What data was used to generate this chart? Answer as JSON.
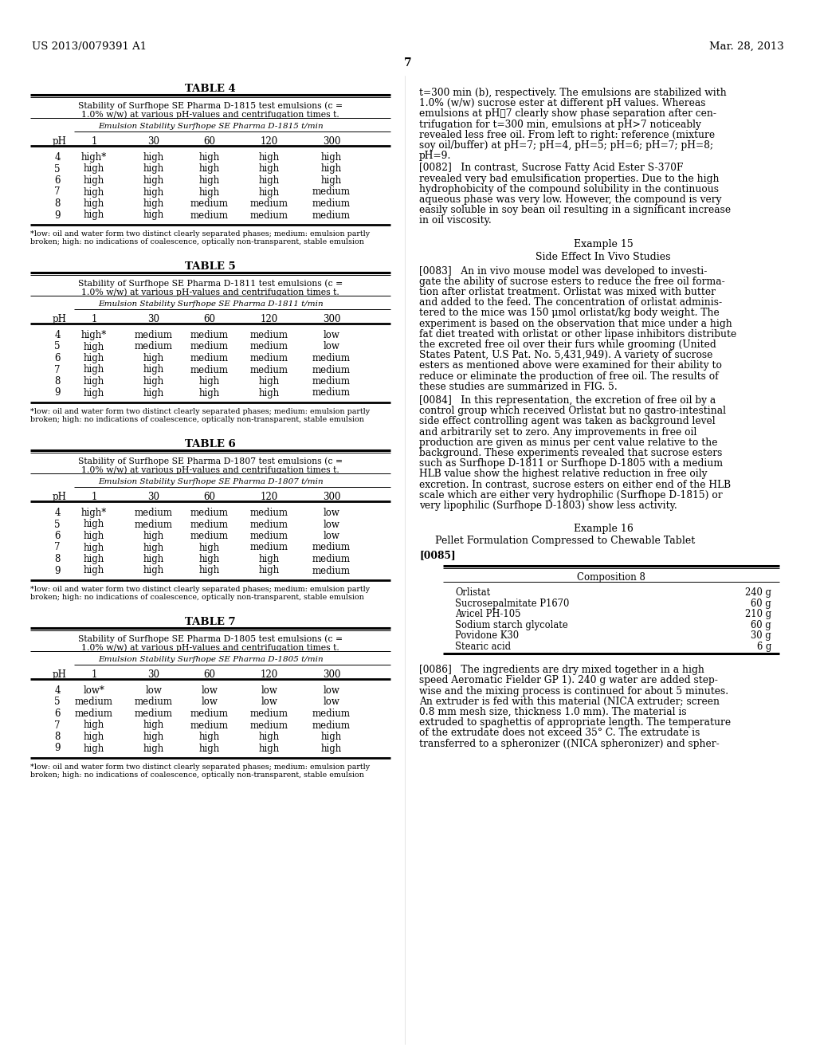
{
  "page_num": "7",
  "patent_num": "US 2013/0079391 A1",
  "patent_date": "Mar. 28, 2013",
  "bg_color": "#ffffff",
  "tables": [
    {
      "title": "TABLE 4",
      "subtitle1": "Stability of Surfhope SE Pharma D-1815 test emulsions (c =",
      "subtitle2": "1.0% w/w) at various pH-values and centrifugation times t.",
      "col_header": "Emulsion Stability Surfhope SE Pharma D-1815 t/min",
      "time_cols": [
        "1",
        "30",
        "60",
        "120",
        "300"
      ],
      "rows": [
        [
          "4",
          "high*",
          "high",
          "high",
          "high",
          "high"
        ],
        [
          "5",
          "high",
          "high",
          "high",
          "high",
          "high"
        ],
        [
          "6",
          "high",
          "high",
          "high",
          "high",
          "high"
        ],
        [
          "7",
          "high",
          "high",
          "high",
          "high",
          "medium"
        ],
        [
          "8",
          "high",
          "high",
          "medium",
          "medium",
          "medium"
        ],
        [
          "9",
          "high",
          "high",
          "medium",
          "medium",
          "medium"
        ]
      ],
      "footnote1": "*low: oil and water form two distinct clearly separated phases; medium: emulsion partly",
      "footnote2": "broken; high: no indications of coalescence, optically non-transparent, stable emulsion"
    },
    {
      "title": "TABLE 5",
      "subtitle1": "Stability of Surfhope SE Pharma D-1811 test emulsions (c =",
      "subtitle2": "1.0% w/w) at various pH-values and centrifugation times t.",
      "col_header": "Emulsion Stability Surfhope SE Pharma D-1811 t/min",
      "time_cols": [
        "1",
        "30",
        "60",
        "120",
        "300"
      ],
      "rows": [
        [
          "4",
          "high*",
          "medium",
          "medium",
          "medium",
          "low"
        ],
        [
          "5",
          "high",
          "medium",
          "medium",
          "medium",
          "low"
        ],
        [
          "6",
          "high",
          "high",
          "medium",
          "medium",
          "medium"
        ],
        [
          "7",
          "high",
          "high",
          "medium",
          "medium",
          "medium"
        ],
        [
          "8",
          "high",
          "high",
          "high",
          "high",
          "medium"
        ],
        [
          "9",
          "high",
          "high",
          "high",
          "high",
          "medium"
        ]
      ],
      "footnote1": "*low: oil and water form two distinct clearly separated phases; medium: emulsion partly",
      "footnote2": "broken; high: no indications of coalescence, optically non-transparent, stable emulsion"
    },
    {
      "title": "TABLE 6",
      "subtitle1": "Stability of Surfhope SE Pharma D-1807 test emulsions (c =",
      "subtitle2": "1.0% w/w) at various pH-values and centrifugation times t.",
      "col_header": "Emulsion Stability Surfhope SE Pharma D-1807 t/min",
      "time_cols": [
        "1",
        "30",
        "60",
        "120",
        "300"
      ],
      "rows": [
        [
          "4",
          "high*",
          "medium",
          "medium",
          "medium",
          "low"
        ],
        [
          "5",
          "high",
          "medium",
          "medium",
          "medium",
          "low"
        ],
        [
          "6",
          "high",
          "high",
          "medium",
          "medium",
          "low"
        ],
        [
          "7",
          "high",
          "high",
          "high",
          "medium",
          "medium"
        ],
        [
          "8",
          "high",
          "high",
          "high",
          "high",
          "medium"
        ],
        [
          "9",
          "high",
          "high",
          "high",
          "high",
          "medium"
        ]
      ],
      "footnote1": "*low: oil and water form two distinct clearly separated phases; medium: emulsion partly",
      "footnote2": "broken; high: no indications of coalescence, optically non-transparent, stable emulsion"
    },
    {
      "title": "TABLE 7",
      "subtitle1": "Stability of Surfhope SE Pharma D-1805 test emulsions (c =",
      "subtitle2": "1.0% w/w) at various pH-values and centrifugation times t.",
      "col_header": "Emulsion Stability Surfhope SE Pharma D-1805 t/min",
      "time_cols": [
        "1",
        "30",
        "60",
        "120",
        "300"
      ],
      "rows": [
        [
          "4",
          "low*",
          "low",
          "low",
          "low",
          "low"
        ],
        [
          "5",
          "medium",
          "medium",
          "low",
          "low",
          "low"
        ],
        [
          "6",
          "medium",
          "medium",
          "medium",
          "medium",
          "medium"
        ],
        [
          "7",
          "high",
          "high",
          "medium",
          "medium",
          "medium"
        ],
        [
          "8",
          "high",
          "high",
          "high",
          "high",
          "high"
        ],
        [
          "9",
          "high",
          "high",
          "high",
          "high",
          "high"
        ]
      ],
      "footnote1": "*low: oil and water form two distinct clearly separated phases; medium: emulsion partly",
      "footnote2": "broken; high: no indications of coalescence, optically non-transparent, stable emulsion"
    }
  ],
  "right_col_para1_lines": [
    "t=300 min (b), respectively. The emulsions are stabilized with",
    "1.0% (w/w) sucrose ester at different pH values. Whereas",
    "emulsions at pH≧7 clearly show phase separation after cen-",
    "trifugation for t=300 min, emulsions at pH>7 noticeably",
    "revealed less free oil. From left to right: reference (mixture",
    "soy oil/buffer) at pH=7; pH=4, pH=5; pH=6; pH=7; pH=8;",
    "pH=9."
  ],
  "right_col_para2_lines": [
    "[0082]   In contrast, Sucrose Fatty Acid Ester S-370F",
    "revealed very bad emulsification properties. Due to the high",
    "hydrophobicity of the compound solubility in the continuous",
    "aqueous phase was very low. However, the compound is very",
    "easily soluble in soy bean oil resulting in a significant increase",
    "in oil viscosity."
  ],
  "example15_title": "Example 15",
  "example15_subtitle": "Side Effect In Vivo Studies",
  "right_col_para3_lines": [
    "[0083]   An in vivo mouse model was developed to investi-",
    "gate the ability of sucrose esters to reduce the free oil forma-",
    "tion after orlistat treatment. Orlistat was mixed with butter",
    "and added to the feed. The concentration of orlistat adminis-",
    "tered to the mice was 150 μmol orlistat/kg body weight. The",
    "experiment is based on the observation that mice under a high",
    "fat diet treated with orlistat or other lipase inhibitors distribute",
    "the excreted free oil over their furs while grooming (United",
    "States Patent, U.S Pat. No. 5,431,949). A variety of sucrose",
    "esters as mentioned above were examined for their ability to",
    "reduce or eliminate the production of free oil. The results of",
    "these studies are summarized in FIG. 5."
  ],
  "right_col_para4_lines": [
    "[0084]   In this representation, the excretion of free oil by a",
    "control group which received Orlistat but no gastro-intestinal",
    "side effect controlling agent was taken as background level",
    "and arbitrarily set to zero. Any improvements in free oil",
    "production are given as minus per cent value relative to the",
    "background. These experiments revealed that sucrose esters",
    "such as Surfhope D-1811 or Surfhope D-1805 with a medium",
    "HLB value show the highest relative reduction in free oily",
    "excretion. In contrast, sucrose esters on either end of the HLB",
    "scale which are either very hydrophilic (Surfhope D-1815) or",
    "very lipophilic (Surfhope D-1803) show less activity."
  ],
  "example16_title": "Example 16",
  "example16_subtitle": "Pellet Formulation Compressed to Chewable Tablet",
  "para_ref4": "[0085]",
  "composition_title": "Composition 8",
  "composition_items": [
    [
      "Orlistat",
      "240 g"
    ],
    [
      "Sucrosepalmitate P1670",
      "60 g"
    ],
    [
      "Avicel PH-105",
      "210 g"
    ],
    [
      "Sodium starch glycolate",
      "60 g"
    ],
    [
      "Povidone K30",
      "30 g"
    ],
    [
      "Stearic acid",
      "6 g"
    ]
  ],
  "right_col_para5_lines": [
    "[0086]   The ingredients are dry mixed together in a high",
    "speed Aeromatic Fielder GP 1). 240 g water are added step-",
    "wise and the mixing process is continued for about 5 minutes.",
    "An extruder is fed with this material (NICA extruder; screen",
    "0.8 mm mesh size, thickness 1.0 mm). The material is",
    "extruded to spaghettis of appropriate length. The temperature",
    "of the extrudate does not exceed 35° C. The extrudate is",
    "transferred to a spheronizer ((NICA spheronizer) and spher-"
  ]
}
